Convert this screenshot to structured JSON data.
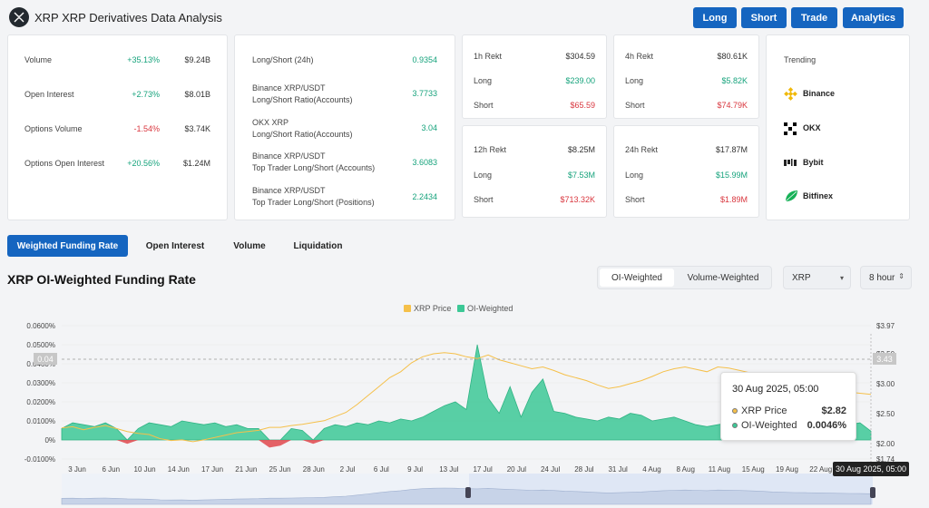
{
  "header": {
    "title": "XRP XRP Derivatives Data Analysis",
    "buttons": [
      "Long",
      "Short",
      "Trade",
      "Analytics"
    ]
  },
  "overview": [
    {
      "label": "Volume",
      "change": "+35.13%",
      "value": "$9.24B",
      "dir": "up"
    },
    {
      "label": "Open Interest",
      "change": "+2.73%",
      "value": "$8.01B",
      "dir": "up"
    },
    {
      "label": "Options Volume",
      "change": "-1.54%",
      "value": "$3.74K",
      "dir": "down"
    },
    {
      "label": "Options Open Interest",
      "change": "+20.56%",
      "value": "$1.24M",
      "dir": "up"
    }
  ],
  "long_short": [
    {
      "line1": "Long/Short (24h)",
      "line2": "",
      "value": "0.9354"
    },
    {
      "line1": "Binance XRP/USDT",
      "line2": "Long/Short Ratio(Accounts)",
      "value": "3.7733"
    },
    {
      "line1": "OKX XRP",
      "line2": "Long/Short Ratio(Accounts)",
      "value": "3.04"
    },
    {
      "line1": "Binance XRP/USDT",
      "line2": "Top Trader Long/Short (Accounts)",
      "value": "3.6083"
    },
    {
      "line1": "Binance XRP/USDT",
      "line2": "Top Trader Long/Short (Positions)",
      "value": "2.2434"
    }
  ],
  "rekt": [
    {
      "period": "1h Rekt",
      "total": "$304.59",
      "long_label": "Long",
      "long": "$239.00",
      "short_label": "Short",
      "short": "$65.59"
    },
    {
      "period": "4h Rekt",
      "total": "$80.61K",
      "long_label": "Long",
      "long": "$5.82K",
      "short_label": "Short",
      "short": "$74.79K"
    },
    {
      "period": "12h Rekt",
      "total": "$8.25M",
      "long_label": "Long",
      "long": "$7.53M",
      "short_label": "Short",
      "short": "$713.32K"
    },
    {
      "period": "24h Rekt",
      "total": "$17.87M",
      "long_label": "Long",
      "long": "$15.99M",
      "short_label": "Short",
      "short": "$1.89M"
    }
  ],
  "trending": {
    "title": "Trending",
    "items": [
      {
        "name": "Binance",
        "icon": "binance-icon",
        "color": "#f0b90b"
      },
      {
        "name": "OKX",
        "icon": "okx-icon",
        "color": "#000000"
      },
      {
        "name": "Bybit",
        "icon": "bybit-icon",
        "color": "#222222"
      },
      {
        "name": "Bitfinex",
        "icon": "bitfinex-icon",
        "color": "#16b157"
      }
    ]
  },
  "tabs": [
    "Weighted Funding Rate",
    "Open Interest",
    "Volume",
    "Liquidation"
  ],
  "chart_section": {
    "title": "XRP OI-Weighted Funding Rate",
    "mode_options": [
      "OI-Weighted",
      "Volume-Weighted"
    ],
    "symbol": "XRP",
    "interval": "8 hour"
  },
  "tooltip": {
    "date": "30 Aug 2025, 05:00",
    "price_label": "XRP Price",
    "price_value": "$2.82",
    "oi_label": "OI-Weighted",
    "oi_value": "0.0046%"
  },
  "crosshair": {
    "left_value": "0.04",
    "right_value": "3.43",
    "time": "30 Aug 2025, 05:00"
  },
  "chart_data": {
    "type": "area",
    "legend": [
      "XRP Price",
      "OI-Weighted"
    ],
    "legend_position": "top-center",
    "colors": {
      "price": "#f5c04a",
      "oi": "#3cc896",
      "negative": "#e0474c"
    },
    "y_left": {
      "ticks": [
        "0.0600%",
        "0.0500%",
        "0.0400%",
        "0.0300%",
        "0.0200%",
        "0.0100%",
        "0%",
        "-0.0100%"
      ],
      "range": [
        -0.01,
        0.06
      ]
    },
    "y_right": {
      "ticks": [
        "$3.97",
        "$3.50",
        "$3.00",
        "$2.50",
        "$2.00",
        "$1.74"
      ],
      "range": [
        1.74,
        3.97
      ]
    },
    "x_ticks": [
      "3 Jun",
      "6 Jun",
      "10 Jun",
      "14 Jun",
      "17 Jun",
      "21 Jun",
      "25 Jun",
      "28 Jun",
      "2 Jul",
      "6 Jul",
      "9 Jul",
      "13 Jul",
      "17 Jul",
      "20 Jul",
      "24 Jul",
      "28 Jul",
      "31 Jul",
      "4 Aug",
      "8 Aug",
      "11 Aug",
      "15 Aug",
      "19 Aug",
      "22 Aug",
      "26"
    ],
    "oi_weighted": [
      0.006,
      0.009,
      0.008,
      0.007,
      0.009,
      0.006,
      -0.002,
      0.006,
      0.009,
      0.008,
      0.007,
      0.01,
      0.009,
      0.008,
      0.009,
      0.007,
      0.008,
      0.006,
      0.006,
      -0.004,
      -0.003,
      0.006,
      0.005,
      -0.002,
      0.006,
      0.008,
      0.007,
      0.009,
      0.008,
      0.01,
      0.009,
      0.011,
      0.01,
      0.012,
      0.015,
      0.018,
      0.02,
      0.016,
      0.05,
      0.022,
      0.014,
      0.028,
      0.012,
      0.025,
      0.032,
      0.015,
      0.014,
      0.012,
      0.011,
      0.01,
      0.012,
      0.011,
      0.014,
      0.013,
      0.01,
      0.011,
      0.012,
      0.01,
      0.008,
      0.007,
      0.008,
      0.009,
      0.008,
      0.01,
      0.009,
      0.008,
      0.009,
      0.01,
      0.008,
      0.009,
      0.01,
      0.009,
      0.008,
      0.009,
      0.0046
    ],
    "xrp_price": [
      2.26,
      2.28,
      2.23,
      2.27,
      2.3,
      2.25,
      2.2,
      2.17,
      2.15,
      2.08,
      2.05,
      2.06,
      2.03,
      2.06,
      2.1,
      2.14,
      2.18,
      2.2,
      2.22,
      2.27,
      2.27,
      2.3,
      2.32,
      2.35,
      2.38,
      2.45,
      2.52,
      2.65,
      2.8,
      2.95,
      3.1,
      3.2,
      3.35,
      3.45,
      3.5,
      3.52,
      3.5,
      3.45,
      3.42,
      3.48,
      3.4,
      3.35,
      3.3,
      3.25,
      3.28,
      3.22,
      3.15,
      3.1,
      3.05,
      2.98,
      2.92,
      2.95,
      3.0,
      3.05,
      3.12,
      3.2,
      3.25,
      3.28,
      3.24,
      3.2,
      3.28,
      3.26,
      3.22,
      3.18,
      3.12,
      3.05,
      3.0,
      2.97,
      2.95,
      2.93,
      2.9,
      2.88,
      2.86,
      2.84,
      2.82
    ]
  }
}
